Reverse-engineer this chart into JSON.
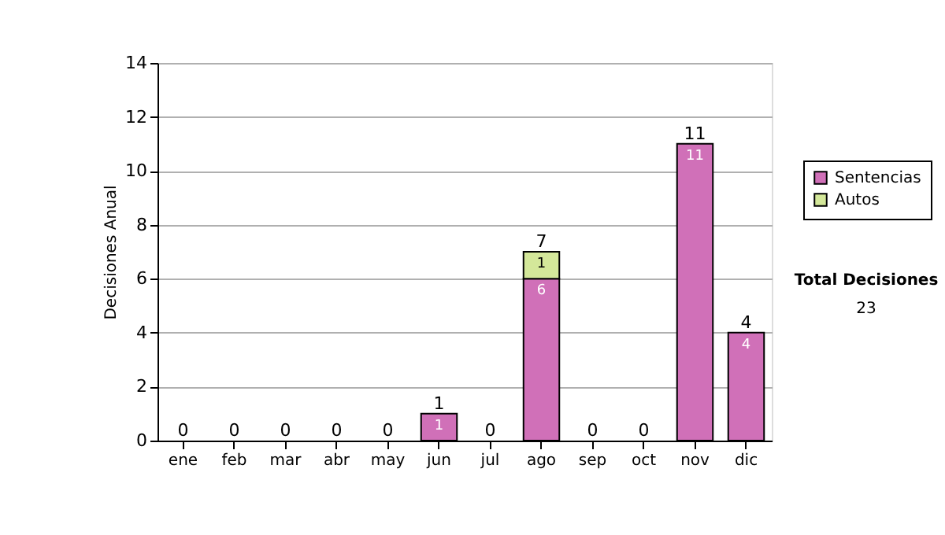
{
  "chart_data": {
    "type": "bar",
    "stacked": true,
    "ylabel": "Decisiones Anual",
    "categories": [
      "ene",
      "feb",
      "mar",
      "abr",
      "may",
      "jun",
      "jul",
      "ago",
      "sep",
      "oct",
      "nov",
      "dic"
    ],
    "series": [
      {
        "name": "Sentencias",
        "color": "#d070b8",
        "values": [
          0,
          0,
          0,
          0,
          0,
          1,
          0,
          6,
          0,
          0,
          11,
          4
        ],
        "value_labels": [
          null,
          null,
          null,
          null,
          null,
          "1",
          null,
          "6",
          null,
          null,
          "11",
          "4"
        ]
      },
      {
        "name": "Autos",
        "color": "#d4e89a",
        "values": [
          0,
          0,
          0,
          0,
          0,
          0,
          0,
          1,
          0,
          0,
          0,
          0
        ],
        "value_labels": [
          null,
          null,
          null,
          null,
          null,
          null,
          null,
          "1",
          null,
          null,
          null,
          null
        ]
      }
    ],
    "totals": [
      "0",
      "0",
      "0",
      "0",
      "0",
      "1",
      "0",
      "7",
      "0",
      "0",
      "11",
      "4"
    ],
    "ylim": [
      0,
      14
    ],
    "yticks": [
      0,
      2,
      4,
      6,
      8,
      10,
      12,
      14
    ],
    "grid": "y",
    "legend": "right",
    "annotations": [
      "Total Decisiones",
      "23"
    ]
  }
}
